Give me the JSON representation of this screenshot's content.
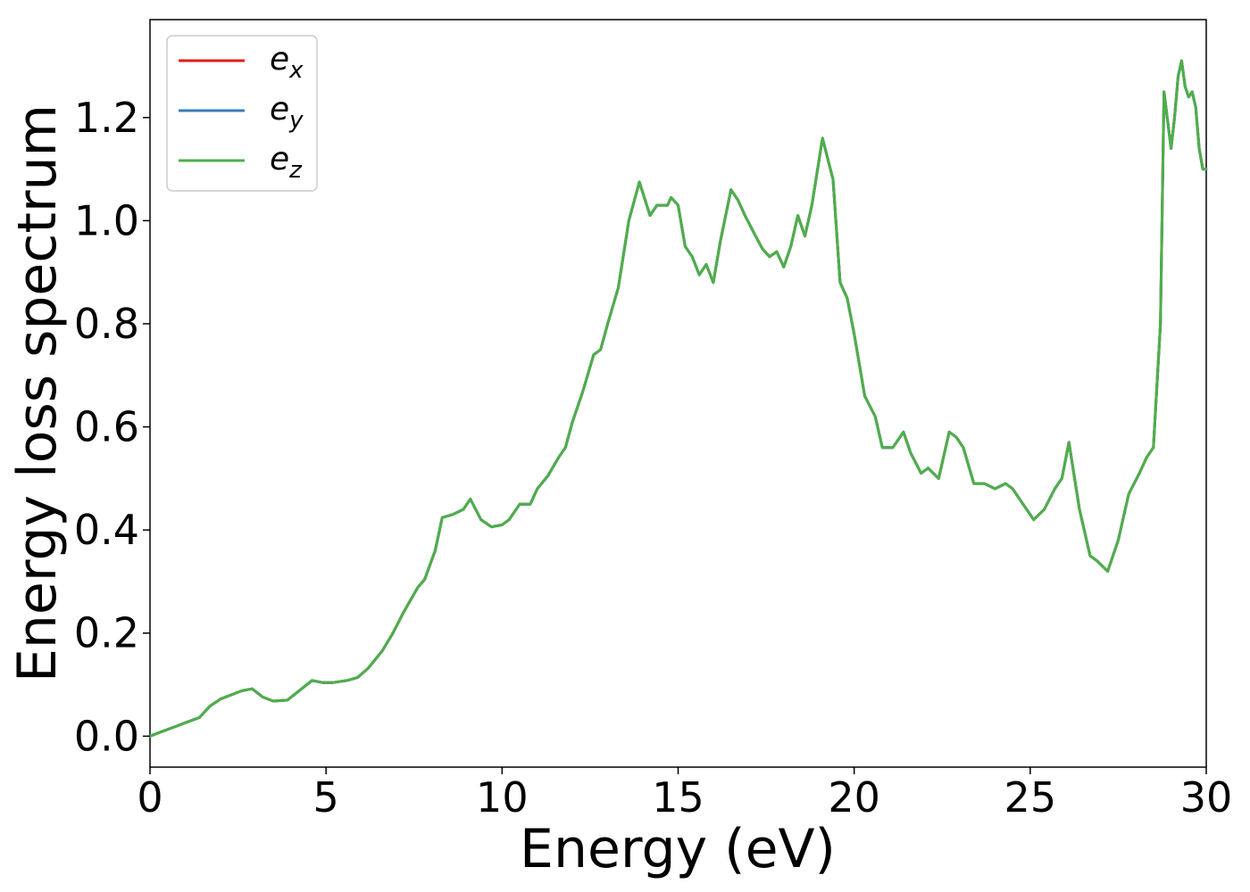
{
  "chart_data": {
    "type": "line",
    "title": "",
    "xlabel": "Energy (eV)",
    "ylabel": "Energy loss spectrum",
    "xlim": [
      0,
      30
    ],
    "ylim": [
      -0.06,
      1.39
    ],
    "xticks": [
      0,
      5,
      10,
      15,
      20,
      25,
      30
    ],
    "xtick_labels": [
      "0",
      "5",
      "10",
      "15",
      "20",
      "25",
      "30"
    ],
    "yticks": [
      0.0,
      0.2,
      0.4,
      0.6,
      0.8,
      1.0,
      1.2
    ],
    "ytick_labels": [
      "0.0",
      "0.2",
      "0.4",
      "0.6",
      "0.8",
      "1.0",
      "1.2"
    ],
    "grid": false,
    "legend_position": "top-left",
    "x": [
      0,
      0.3,
      0.7,
      1.0,
      1.4,
      1.7,
      2.0,
      2.3,
      2.6,
      2.9,
      3.2,
      3.5,
      3.9,
      4.2,
      4.6,
      4.9,
      5.2,
      5.6,
      5.9,
      6.2,
      6.6,
      6.9,
      7.2,
      7.6,
      7.8,
      8.1,
      8.3,
      8.6,
      8.9,
      9.1,
      9.4,
      9.7,
      10.0,
      10.2,
      10.5,
      10.8,
      11.0,
      11.3,
      11.6,
      11.8,
      12.0,
      12.3,
      12.6,
      12.8,
      13.0,
      13.3,
      13.6,
      13.9,
      14.2,
      14.4,
      14.7,
      14.8,
      15.0,
      15.2,
      15.4,
      15.6,
      15.8,
      16.0,
      16.2,
      16.5,
      16.7,
      16.9,
      17.2,
      17.4,
      17.6,
      17.8,
      18.0,
      18.2,
      18.4,
      18.6,
      18.8,
      19.1,
      19.4,
      19.6,
      19.8,
      20.0,
      20.3,
      20.6,
      20.8,
      21.1,
      21.4,
      21.6,
      21.9,
      22.1,
      22.4,
      22.7,
      22.9,
      23.1,
      23.4,
      23.7,
      24.0,
      24.3,
      24.5,
      24.8,
      25.1,
      25.4,
      25.7,
      25.9,
      26.1,
      26.4,
      26.7,
      26.9,
      27.2,
      27.5,
      27.8,
      28.1,
      28.3,
      28.5,
      28.7,
      28.8,
      29.0,
      29.1,
      29.2,
      29.3,
      29.4,
      29.5,
      29.6,
      29.7,
      29.8,
      29.9,
      30.0
    ],
    "series": [
      {
        "name": "e_x",
        "values": [
          0.0,
          0.008,
          0.018,
          0.026,
          0.036,
          0.058,
          0.072,
          0.08,
          0.088,
          0.092,
          0.076,
          0.068,
          0.07,
          0.086,
          0.108,
          0.104,
          0.104,
          0.108,
          0.114,
          0.132,
          0.166,
          0.2,
          0.24,
          0.288,
          0.304,
          0.36,
          0.424,
          0.43,
          0.44,
          0.46,
          0.42,
          0.406,
          0.41,
          0.42,
          0.45,
          0.45,
          0.48,
          0.505,
          0.54,
          0.56,
          0.61,
          0.67,
          0.74,
          0.75,
          0.8,
          0.87,
          1.0,
          1.075,
          1.01,
          1.03,
          1.03,
          1.045,
          1.03,
          0.95,
          0.93,
          0.895,
          0.915,
          0.88,
          0.96,
          1.06,
          1.04,
          1.01,
          0.97,
          0.945,
          0.93,
          0.94,
          0.91,
          0.95,
          1.01,
          0.97,
          1.03,
          1.16,
          1.08,
          0.88,
          0.85,
          0.78,
          0.66,
          0.62,
          0.56,
          0.56,
          0.59,
          0.55,
          0.51,
          0.52,
          0.5,
          0.59,
          0.58,
          0.56,
          0.49,
          0.49,
          0.48,
          0.49,
          0.48,
          0.45,
          0.42,
          0.44,
          0.48,
          0.5,
          0.57,
          0.44,
          0.35,
          0.34,
          0.32,
          0.38,
          0.47,
          0.51,
          0.54,
          0.56,
          0.8,
          1.25,
          1.14,
          1.2,
          1.28,
          1.31,
          1.26,
          1.24,
          1.25,
          1.22,
          1.14,
          1.1,
          1.1
        ]
      },
      {
        "name": "e_y",
        "values": [
          0.0,
          0.008,
          0.018,
          0.026,
          0.036,
          0.058,
          0.072,
          0.08,
          0.088,
          0.092,
          0.076,
          0.068,
          0.07,
          0.086,
          0.108,
          0.104,
          0.104,
          0.108,
          0.114,
          0.132,
          0.166,
          0.2,
          0.24,
          0.288,
          0.304,
          0.36,
          0.424,
          0.43,
          0.44,
          0.46,
          0.42,
          0.406,
          0.41,
          0.42,
          0.45,
          0.45,
          0.48,
          0.505,
          0.54,
          0.56,
          0.61,
          0.67,
          0.74,
          0.75,
          0.8,
          0.87,
          1.0,
          1.075,
          1.01,
          1.03,
          1.03,
          1.045,
          1.03,
          0.95,
          0.93,
          0.895,
          0.915,
          0.88,
          0.96,
          1.06,
          1.04,
          1.01,
          0.97,
          0.945,
          0.93,
          0.94,
          0.91,
          0.95,
          1.01,
          0.97,
          1.03,
          1.16,
          1.08,
          0.88,
          0.85,
          0.78,
          0.66,
          0.62,
          0.56,
          0.56,
          0.59,
          0.55,
          0.51,
          0.52,
          0.5,
          0.59,
          0.58,
          0.56,
          0.49,
          0.49,
          0.48,
          0.49,
          0.48,
          0.45,
          0.42,
          0.44,
          0.48,
          0.5,
          0.57,
          0.44,
          0.35,
          0.34,
          0.32,
          0.38,
          0.47,
          0.51,
          0.54,
          0.56,
          0.8,
          1.25,
          1.14,
          1.2,
          1.28,
          1.31,
          1.26,
          1.24,
          1.25,
          1.22,
          1.14,
          1.1,
          1.1
        ]
      },
      {
        "name": "e_z",
        "values": [
          0.0,
          0.008,
          0.018,
          0.026,
          0.036,
          0.058,
          0.072,
          0.08,
          0.088,
          0.092,
          0.076,
          0.068,
          0.07,
          0.086,
          0.108,
          0.104,
          0.104,
          0.108,
          0.114,
          0.132,
          0.166,
          0.2,
          0.24,
          0.288,
          0.304,
          0.36,
          0.424,
          0.43,
          0.44,
          0.46,
          0.42,
          0.406,
          0.41,
          0.42,
          0.45,
          0.45,
          0.48,
          0.505,
          0.54,
          0.56,
          0.61,
          0.67,
          0.74,
          0.75,
          0.8,
          0.87,
          1.0,
          1.075,
          1.01,
          1.03,
          1.03,
          1.045,
          1.03,
          0.95,
          0.93,
          0.895,
          0.915,
          0.88,
          0.96,
          1.06,
          1.04,
          1.01,
          0.97,
          0.945,
          0.93,
          0.94,
          0.91,
          0.95,
          1.01,
          0.97,
          1.03,
          1.16,
          1.08,
          0.88,
          0.85,
          0.78,
          0.66,
          0.62,
          0.56,
          0.56,
          0.59,
          0.55,
          0.51,
          0.52,
          0.5,
          0.59,
          0.58,
          0.56,
          0.49,
          0.49,
          0.48,
          0.49,
          0.48,
          0.45,
          0.42,
          0.44,
          0.48,
          0.5,
          0.57,
          0.44,
          0.35,
          0.34,
          0.32,
          0.38,
          0.47,
          0.51,
          0.54,
          0.56,
          0.8,
          1.25,
          1.14,
          1.2,
          1.28,
          1.31,
          1.26,
          1.24,
          1.25,
          1.22,
          1.14,
          1.1,
          1.1
        ]
      }
    ],
    "legend": [
      {
        "base": "e",
        "sub": "x",
        "color": "#e41a1c"
      },
      {
        "base": "e",
        "sub": "y",
        "color": "#377eb8"
      },
      {
        "base": "e",
        "sub": "z",
        "color": "#4daf4a"
      }
    ]
  }
}
